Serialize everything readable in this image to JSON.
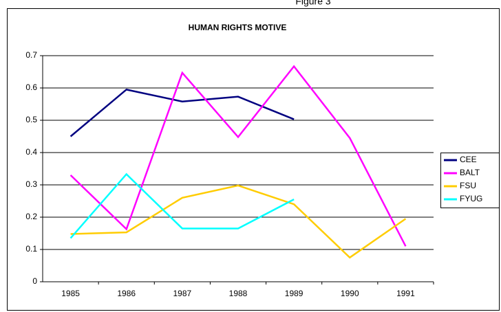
{
  "caption": "Figure 3",
  "chart_data": {
    "type": "line",
    "title": "HUMAN RIGHTS MOTIVE",
    "categories": [
      "1985",
      "1986",
      "1987",
      "1988",
      "1989",
      "1990",
      "1991"
    ],
    "series": [
      {
        "name": "CEE",
        "color": "#000080",
        "values": [
          0.45,
          0.595,
          0.558,
          0.573,
          0.503,
          null,
          null
        ]
      },
      {
        "name": "BALT",
        "color": "#ff00ff",
        "values": [
          0.33,
          0.163,
          0.647,
          0.448,
          0.667,
          0.445,
          0.11
        ]
      },
      {
        "name": "FSU",
        "color": "#ffcc00",
        "values": [
          0.148,
          0.153,
          0.26,
          0.298,
          0.24,
          0.075,
          0.195
        ]
      },
      {
        "name": "FYUG",
        "color": "#00ffff",
        "values": [
          0.135,
          0.333,
          0.165,
          0.165,
          0.255,
          null,
          null
        ]
      }
    ],
    "ylim": [
      0,
      0.7
    ],
    "yticks": [
      0,
      0.1,
      0.2,
      0.3,
      0.4,
      0.5,
      0.6,
      0.7
    ],
    "grid": true,
    "legend": "right"
  }
}
